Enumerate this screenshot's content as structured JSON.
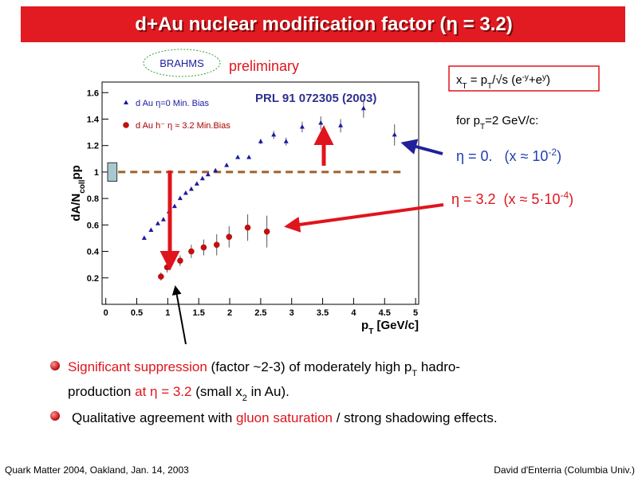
{
  "slide": {
    "title": "d+Au nuclear modification factor (η = 3.2)",
    "logo": "BRAHMS",
    "preliminary": "preliminary",
    "formula": [
      "x",
      "T",
      " = p",
      "T",
      "/√s (e",
      "-y",
      "+e",
      "y",
      ")"
    ],
    "condition": [
      "for p",
      "T",
      "=2 GeV/c:"
    ],
    "eta0": [
      "η = 0.   (x ≈ 10",
      "-2",
      ")"
    ],
    "eta32": [
      "η = 3.2  (x ≈ 5·10",
      "-4",
      ")"
    ],
    "bullet1_line1": [
      "Significant suppression",
      " (factor ~2-3) of moderately high p",
      "T",
      " hadro-"
    ],
    "bullet1_line2": [
      "production ",
      "at η = 3.2",
      " (small x",
      "2",
      " in Au)."
    ],
    "bullet2": [
      "Qualitative agreement with ",
      "gluon saturation",
      " / strong shadowing effects."
    ],
    "footer_left": "Quark Matter 2004, Oakland, Jan. 14, 2003",
    "footer_right": "David d'Enterria (Columbia Univ.)"
  },
  "chart_data": {
    "type": "scatter",
    "annotation": "PRL 91 072305 (2003)",
    "xlabel": [
      "p",
      "T",
      " [GeV/c]"
    ],
    "ylabel": [
      "dA/N",
      "coll",
      "pp"
    ],
    "xlim": [
      -0.06,
      5.05
    ],
    "ylim": [
      0,
      1.68
    ],
    "xticks": [
      0,
      0.5,
      1,
      1.5,
      2,
      2.5,
      3,
      3.5,
      4,
      4.5,
      5
    ],
    "yticks": [
      0.2,
      0.4,
      0.6,
      0.8,
      1,
      1.2,
      1.4,
      1.6
    ],
    "reference_line": {
      "y": 1,
      "x": [
        0.2,
        4.8
      ]
    },
    "norm_box": {
      "x": [
        0.03,
        0.18
      ],
      "y": [
        0.93,
        1.07
      ]
    },
    "legend": "top-left",
    "series": [
      {
        "name": "d Au η=0 Min. Bias",
        "color": "#1a1aa0",
        "marker": "triangle",
        "x": [
          0.62,
          0.73,
          0.84,
          0.93,
          1.02,
          1.11,
          1.2,
          1.29,
          1.38,
          1.47,
          1.56,
          1.65,
          1.77,
          1.95,
          2.13,
          2.31,
          2.5,
          2.71,
          2.91,
          3.17,
          3.47,
          3.79,
          4.16,
          4.66
        ],
        "values": [
          0.5,
          0.56,
          0.61,
          0.64,
          0.7,
          0.74,
          0.8,
          0.84,
          0.87,
          0.91,
          0.95,
          0.98,
          1.01,
          1.05,
          1.11,
          1.11,
          1.23,
          1.28,
          1.23,
          1.34,
          1.37,
          1.35,
          1.48,
          1.28
        ],
        "errors": [
          0.01,
          0.01,
          0.01,
          0.01,
          0.01,
          0.01,
          0.01,
          0.01,
          0.01,
          0.01,
          0.01,
          0.01,
          0.01,
          0.01,
          0.01,
          0.01,
          0.02,
          0.03,
          0.03,
          0.04,
          0.05,
          0.05,
          0.07,
          0.08
        ]
      },
      {
        "name": "d Au h⁻ η ≈ 3.2 Min.Bias",
        "color": "#c01010",
        "marker": "circle",
        "x": [
          0.89,
          0.99,
          1.2,
          1.38,
          1.58,
          1.79,
          1.99,
          2.29,
          2.6
        ],
        "values": [
          0.21,
          0.28,
          0.33,
          0.4,
          0.43,
          0.45,
          0.51,
          0.58,
          0.55
        ],
        "errors": [
          0.03,
          0.04,
          0.04,
          0.05,
          0.06,
          0.08,
          0.08,
          0.1,
          0.12
        ]
      }
    ]
  }
}
